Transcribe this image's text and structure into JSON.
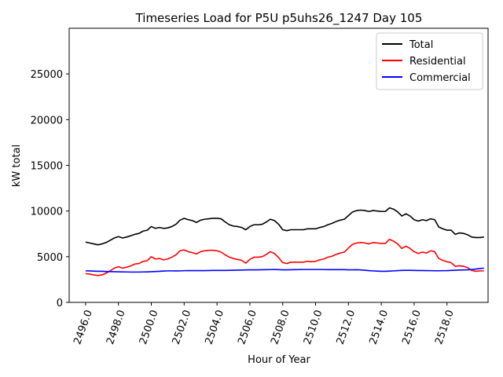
{
  "chart_data": {
    "type": "line",
    "title": "Timeseries Load for P5U p5uhs26_1247  Day 105",
    "xlabel": "Hour of Year",
    "ylabel": "kW total",
    "xlim": [
      2495.0,
      2520.5
    ],
    "ylim": [
      0,
      30000
    ],
    "xticks": [
      2496,
      2498,
      2500,
      2502,
      2504,
      2506,
      2508,
      2510,
      2512,
      2514,
      2516,
      2518
    ],
    "xtick_labels": [
      "2496.0",
      "2498.0",
      "2500.0",
      "2502.0",
      "2504.0",
      "2506.0",
      "2508.0",
      "2510.0",
      "2512.0",
      "2514.0",
      "2516.0",
      "2518.0"
    ],
    "yticks": [
      0,
      5000,
      10000,
      15000,
      20000,
      25000
    ],
    "ytick_labels": [
      "0",
      "5000",
      "10000",
      "15000",
      "20000",
      "25000"
    ],
    "legend_position": "top-right",
    "x_start": 2496.0,
    "x_step": 0.25,
    "series": [
      {
        "name": "Total",
        "color": "#000000",
        "values": [
          6600,
          6500,
          6400,
          6300,
          6400,
          6550,
          6800,
          7050,
          7200,
          7050,
          7150,
          7300,
          7450,
          7550,
          7800,
          7900,
          8300,
          8100,
          8200,
          8100,
          8150,
          8300,
          8550,
          9000,
          9200,
          9050,
          8950,
          8750,
          9000,
          9100,
          9150,
          9200,
          9200,
          9150,
          8800,
          8500,
          8350,
          8300,
          8200,
          7950,
          8300,
          8500,
          8500,
          8550,
          8800,
          9100,
          8950,
          8550,
          7950,
          7850,
          7950,
          7950,
          7950,
          7950,
          8050,
          8050,
          8050,
          8200,
          8300,
          8500,
          8650,
          8850,
          9000,
          9100,
          9500,
          9900,
          10050,
          10100,
          10050,
          9950,
          10050,
          10000,
          9950,
          9950,
          10350,
          10200,
          9900,
          9450,
          9700,
          9450,
          9050,
          8900,
          9050,
          8950,
          9150,
          9050,
          8250,
          8050,
          7900,
          7900,
          7450,
          7600,
          7550,
          7400,
          7150,
          7100,
          7100,
          7150
        ]
      },
      {
        "name": "Residential",
        "color": "#ff0000",
        "values": [
          3150,
          3100,
          3000,
          2950,
          3000,
          3200,
          3450,
          3750,
          3900,
          3750,
          3850,
          4000,
          4200,
          4250,
          4500,
          4550,
          5000,
          4750,
          4800,
          4650,
          4750,
          4950,
          5200,
          5650,
          5750,
          5550,
          5450,
          5300,
          5550,
          5650,
          5700,
          5700,
          5650,
          5500,
          5200,
          4950,
          4800,
          4700,
          4600,
          4300,
          4700,
          4950,
          4950,
          5000,
          5250,
          5550,
          5350,
          4900,
          4350,
          4250,
          4400,
          4400,
          4400,
          4400,
          4500,
          4450,
          4500,
          4650,
          4750,
          4950,
          5050,
          5250,
          5400,
          5500,
          5950,
          6350,
          6500,
          6550,
          6500,
          6400,
          6550,
          6500,
          6450,
          6450,
          6900,
          6700,
          6400,
          5900,
          6150,
          5900,
          5550,
          5350,
          5500,
          5400,
          5650,
          5550,
          4800,
          4600,
          4450,
          4350,
          3950,
          4000,
          3950,
          3800,
          3500,
          3400,
          3450,
          3450
        ]
      },
      {
        "name": "Commercial",
        "color": "#0000ff",
        "values": [
          3450,
          3440,
          3420,
          3400,
          3400,
          3380,
          3370,
          3360,
          3350,
          3340,
          3330,
          3320,
          3320,
          3320,
          3330,
          3340,
          3360,
          3380,
          3400,
          3430,
          3450,
          3450,
          3440,
          3450,
          3470,
          3480,
          3480,
          3480,
          3480,
          3480,
          3490,
          3500,
          3500,
          3500,
          3500,
          3510,
          3520,
          3530,
          3540,
          3550,
          3560,
          3560,
          3560,
          3570,
          3580,
          3590,
          3600,
          3580,
          3560,
          3560,
          3570,
          3580,
          3590,
          3600,
          3600,
          3600,
          3600,
          3600,
          3590,
          3580,
          3580,
          3580,
          3590,
          3580,
          3560,
          3560,
          3570,
          3550,
          3520,
          3480,
          3450,
          3420,
          3400,
          3400,
          3420,
          3450,
          3480,
          3500,
          3510,
          3510,
          3500,
          3490,
          3490,
          3480,
          3470,
          3460,
          3460,
          3470,
          3480,
          3500,
          3520,
          3540,
          3550,
          3560,
          3600,
          3650,
          3700,
          3750
        ]
      }
    ]
  }
}
